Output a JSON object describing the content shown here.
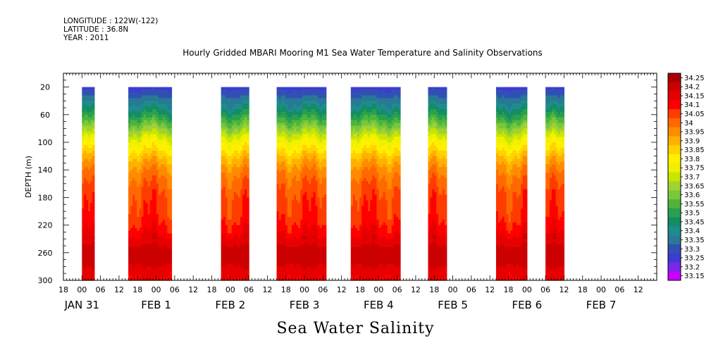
{
  "header": {
    "longitude": "LONGITUDE : 122W(-122)",
    "latitude": "LATITUDE : 36.8N",
    "year": "YEAR : 2011",
    "title": "Hourly Gridded MBARI Mooring M1 Sea Water Temperature and Salinity Observations",
    "caption": "Sea Water Salinity"
  },
  "chart_data": {
    "type": "heatmap",
    "title": "Hourly Gridded MBARI Mooring M1 Sea Water Temperature and Salinity Observations",
    "xlabel": "",
    "ylabel": "DEPTH (m)",
    "colorbar_label": "Sea Water Salinity",
    "x_range_hours": [
      -6,
      186
    ],
    "x_origin": "2011-01-31 00:00",
    "ylim": [
      300,
      0
    ],
    "y_ticks": [
      20,
      60,
      100,
      140,
      180,
      220,
      260,
      300
    ],
    "x_tick_labels": [
      "18",
      "00",
      "06",
      "12",
      "18",
      "00",
      "06",
      "12",
      "18",
      "00",
      "06",
      "12",
      "18",
      "00",
      "06",
      "12",
      "18",
      "00",
      "06",
      "12",
      "18",
      "00",
      "06",
      "12",
      "18",
      "00",
      "06",
      "12",
      "18",
      "00",
      "06",
      "12"
    ],
    "date_labels": [
      {
        "text": "JAN 31",
        "hour": 0
      },
      {
        "text": "FEB  1",
        "hour": 24
      },
      {
        "text": "FEB  2",
        "hour": 48
      },
      {
        "text": "FEB  3",
        "hour": 72
      },
      {
        "text": "FEB  4",
        "hour": 96
      },
      {
        "text": "FEB  5",
        "hour": 120
      },
      {
        "text": "FEB  6",
        "hour": 144
      },
      {
        "text": "FEB  7",
        "hour": 168
      }
    ],
    "data_segments_hours": [
      [
        0,
        4
      ],
      [
        15,
        29
      ],
      [
        45,
        54
      ],
      [
        63,
        79
      ],
      [
        87,
        103
      ],
      [
        112,
        118
      ],
      [
        134,
        144
      ],
      [
        150,
        156
      ]
    ],
    "colorbar_levels": [
      "34.25",
      "34.2",
      "34.15",
      "34.1",
      "34.05",
      "34",
      "33.95",
      "33.9",
      "33.85",
      "33.8",
      "33.75",
      "33.7",
      "33.65",
      "33.6",
      "33.55",
      "33.5",
      "33.45",
      "33.4",
      "33.35",
      "33.3",
      "33.25",
      "33.2",
      "33.15"
    ],
    "colorbar_colors": [
      "#a80000",
      "#cc0000",
      "#e60000",
      "#ff0000",
      "#ff3c00",
      "#ff6a00",
      "#ff8c00",
      "#ffb000",
      "#ffd200",
      "#fff000",
      "#f0f000",
      "#c8e600",
      "#a0d232",
      "#78c83c",
      "#50b43c",
      "#28a050",
      "#148c64",
      "#1e8c8c",
      "#287896",
      "#3250b4",
      "#3c3cd2",
      "#7828e6",
      "#c800ff"
    ],
    "profile_depths": [
      20,
      35,
      50,
      65,
      80,
      95,
      110,
      125,
      140,
      155,
      170,
      185,
      200,
      215,
      230,
      245,
      260,
      275,
      290,
      300
    ],
    "profile_salinity": [
      33.25,
      33.33,
      33.42,
      33.52,
      33.63,
      33.74,
      33.82,
      33.9,
      33.96,
      34.0,
      34.03,
      34.05,
      34.06,
      34.08,
      34.12,
      34.16,
      34.21,
      34.19,
      34.14,
      34.12
    ]
  }
}
